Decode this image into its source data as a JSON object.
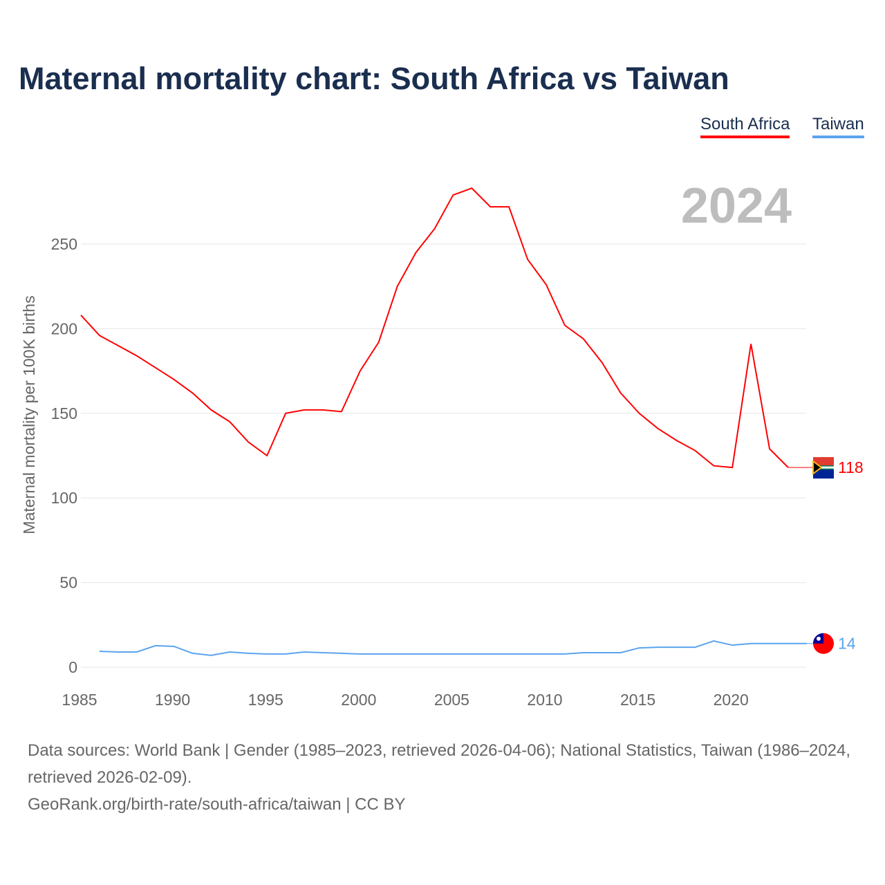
{
  "title": "Maternal mortality chart: South Africa vs Taiwan",
  "legend": {
    "south_africa": "South Africa",
    "taiwan": "Taiwan"
  },
  "year_label": "2024",
  "footer": {
    "sources": "Data sources: World Bank | Gender (1985–2023, retrieved 2026-04-06); National Statistics, Taiwan (1986–2024, retrieved 2026-02-09).",
    "credit": "GeoRank.org/birth-rate/south-africa/taiwan | CC BY"
  },
  "chart_data": {
    "type": "line",
    "title": "Maternal mortality chart: South Africa vs Taiwan",
    "xlabel": "",
    "ylabel": "Maternal mortality per 100K births",
    "xlim": [
      1985,
      2024
    ],
    "ylim": [
      0,
      290
    ],
    "xticks": [
      "1985",
      "1990",
      "1995",
      "2000",
      "2005",
      "2010",
      "2015",
      "2020"
    ],
    "yticks": [
      "0",
      "50",
      "100",
      "150",
      "200",
      "250"
    ],
    "grid": true,
    "legend_position": "top-right",
    "series": [
      {
        "name": "South Africa",
        "color": "#ff0000",
        "end_label": "118",
        "x": [
          1985,
          1986,
          1987,
          1988,
          1989,
          1990,
          1991,
          1992,
          1993,
          1994,
          1995,
          1996,
          1997,
          1998,
          1999,
          2000,
          2001,
          2002,
          2003,
          2004,
          2005,
          2006,
          2007,
          2008,
          2009,
          2010,
          2011,
          2012,
          2013,
          2014,
          2015,
          2016,
          2017,
          2018,
          2019,
          2020,
          2021,
          2022,
          2023
        ],
        "values": [
          208,
          196,
          190,
          184,
          177,
          170,
          162,
          152,
          145,
          133,
          125,
          150,
          152,
          152,
          151,
          175,
          192,
          225,
          245,
          259,
          279,
          283,
          272,
          272,
          241,
          226,
          202,
          194,
          180,
          162,
          150,
          141,
          134,
          128,
          119,
          118,
          191,
          129,
          118
        ]
      },
      {
        "name": "Taiwan",
        "color": "#5ba3ee",
        "end_label": "14",
        "x": [
          1986,
          1987,
          1988,
          1989,
          1990,
          1991,
          1992,
          1993,
          1994,
          1995,
          1996,
          1997,
          1998,
          1999,
          2000,
          2001,
          2002,
          2003,
          2004,
          2005,
          2006,
          2007,
          2008,
          2009,
          2010,
          2011,
          2012,
          2013,
          2014,
          2015,
          2016,
          2017,
          2018,
          2019,
          2020,
          2021,
          2022,
          2023,
          2024
        ],
        "values": [
          9.4,
          9,
          9,
          12.7,
          12.3,
          8.2,
          7,
          9,
          8.2,
          7.8,
          7.8,
          9,
          8.6,
          8.2,
          7.8,
          7.8,
          7.8,
          7.8,
          7.8,
          7.8,
          7.8,
          7.8,
          7.8,
          7.8,
          7.8,
          7.8,
          8.6,
          8.6,
          8.6,
          11.4,
          11.8,
          11.8,
          11.8,
          15.5,
          13,
          14,
          14,
          14,
          14
        ]
      }
    ]
  }
}
